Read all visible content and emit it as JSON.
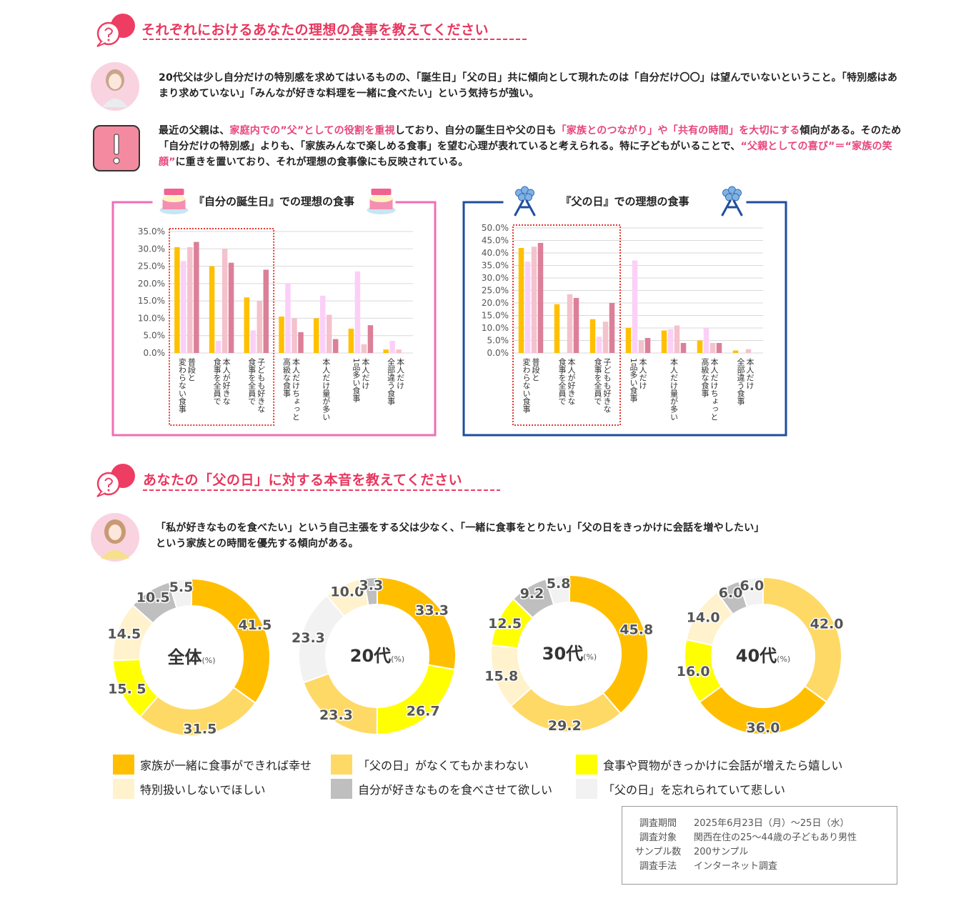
{
  "sections": [
    {
      "title": "それぞれにおけるあなたの理想の食事を教えてください"
    },
    {
      "title": "あなたの「父の日」に対する本音を教えてください"
    }
  ],
  "comment1": "20代父は少し自分だけの特別感を求めてはいるものの、「誕生日」「父の日」共に傾向として現れたのは「自分だけ〇〇」は望んでいないということ。「特別感はあまり求めていない」「みんなが好きな料理を一緒に食べたい」という気持ちが強い。",
  "comment2": [
    {
      "text": "最近の父親は、",
      "highlight": false
    },
    {
      "text": "家庭内での”父”としての役割を重視",
      "highlight": true
    },
    {
      "text": "しており、自分の誕生日や父の日も",
      "highlight": false
    },
    {
      "text": "「家族とのつながり」や「共有の時間」を大切にする",
      "highlight": true
    },
    {
      "text": "傾向がある。そのため「自分だけの特別感」よりも、「家族みんなで楽しめる食事」を望む心理が表れていると考えられる。特に子どもがいることで、",
      "highlight": false
    },
    {
      "text": "“父親としての喜び”＝“家族の笑顔”",
      "highlight": true
    },
    {
      "text": "に重きを置いており、それが理想の食事像にも反映されている。",
      "highlight": false
    }
  ],
  "comment3": [
    "「私が好きなものを食べたい」という自己主張をする父は少なく、「一緒に食事をとりたい」「父の日をきっかけに会話を増やしたい」",
    "という家族との時間を優先する傾向がある。"
  ],
  "chart_data": [
    {
      "type": "bar",
      "title": "『自分の誕生日』での理想の食事",
      "categories": [
        "普段と\n変わらない食事",
        "本人が好きな\n食事を全員で",
        "子どもも好きな\n食事を全員で",
        "本人だけちょっと\n高級な食事",
        "本人だけ量が多い",
        "本人だけ\n1品多い食事",
        "本人だけ\n全部違う食事"
      ],
      "series": [
        {
          "color": "#ffc000",
          "values": [
            30.5,
            25,
            16,
            10.5,
            10,
            7,
            1
          ]
        },
        {
          "color": "#fbd0f7",
          "values": [
            26.5,
            3.5,
            6.5,
            20,
            16.5,
            23.5,
            3.5
          ]
        },
        {
          "color": "#f4c2cc",
          "values": [
            30.5,
            30,
            15,
            10,
            11,
            2.5,
            1
          ]
        },
        {
          "color": "#dc7f98",
          "values": [
            32,
            26,
            24,
            6,
            4,
            8,
            0
          ]
        }
      ],
      "ylim": [
        0,
        35
      ],
      "yticks": [
        {
          "value": 0,
          "label": "0.0%"
        },
        {
          "value": 5,
          "label": "5.0%"
        },
        {
          "value": 10,
          "label": "10.0%"
        },
        {
          "value": 15,
          "label": "15.0%"
        },
        {
          "value": 20,
          "label": "20.0%"
        },
        {
          "value": 25,
          "label": "25.0%"
        },
        {
          "value": 30,
          "label": "30.0%"
        },
        {
          "value": 35,
          "label": "35.0%"
        }
      ],
      "grid": true,
      "frame_color": "#ee6fb5"
    },
    {
      "type": "bar",
      "title": "『父の日』での理想の食事",
      "categories": [
        "普段と\n変わらない食事",
        "本人が好きな\n食事を全員で",
        "子どもも好きな\n食事を全員で",
        "本人だけ\n1品多い食事",
        "本人だけ量が多い",
        "本人だけちょっと\n高級な食事",
        "本人だけ\n全部違う食事"
      ],
      "series": [
        {
          "color": "#ffc000",
          "values": [
            42,
            19.5,
            13.5,
            10,
            9,
            5,
            1
          ]
        },
        {
          "color": "#fbd0f7",
          "values": [
            36.5,
            0,
            6.5,
            37,
            9.5,
            10,
            0
          ]
        },
        {
          "color": "#f4c2cc",
          "values": [
            42.5,
            23.5,
            12.5,
            5,
            11,
            4,
            1.5
          ]
        },
        {
          "color": "#dc7f98",
          "values": [
            44,
            22,
            20,
            6,
            4,
            4,
            0
          ]
        }
      ],
      "ylim": [
        0,
        50
      ],
      "yticks": [
        {
          "value": 0,
          "label": "0.0%"
        },
        {
          "value": 5,
          "label": "5.0%"
        },
        {
          "value": 10,
          "label": "10.0%"
        },
        {
          "value": 15,
          "label": "15.0%"
        },
        {
          "value": 20,
          "label": "20.0%"
        },
        {
          "value": 25,
          "label": "25.0%"
        },
        {
          "value": 30,
          "label": "30.0%"
        },
        {
          "value": 35,
          "label": "35.0%"
        },
        {
          "value": 40,
          "label": "40.0%"
        },
        {
          "value": 45,
          "label": "45.0%"
        },
        {
          "value": 50,
          "label": "50.0%"
        }
      ],
      "grid": true,
      "frame_color": "#1f4e9c"
    },
    {
      "type": "donut",
      "title": "全体",
      "unit": "(%)",
      "values": [
        41.5,
        31.5,
        15.5,
        14.5,
        10.5,
        5.5
      ],
      "value_labels": [
        "41.5",
        "31.5",
        "15. 5",
        "14.5",
        "10.5",
        "5.5"
      ],
      "colors": [
        "#ffbf00",
        "#ffd966",
        "#ffff00",
        "#fff2cc",
        "#bfbfbf",
        "#f2f2f2"
      ]
    },
    {
      "type": "donut",
      "title": "20代",
      "unit": "(%)",
      "values": [
        33.3,
        26.7,
        23.3,
        23.3,
        10.0,
        3.3
      ],
      "value_labels": [
        "33.3",
        "26.7",
        "23.3",
        "23.3",
        "10.0",
        "3.3"
      ],
      "colors": [
        "#ffbf00",
        "#ffff00",
        "#ffd966",
        "#f2f2f2",
        "#fff2cc",
        "#bfbfbf"
      ]
    },
    {
      "type": "donut",
      "title": "30代",
      "unit": "(%)",
      "values": [
        45.8,
        29.2,
        15.8,
        12.5,
        9.2,
        5.8
      ],
      "value_labels": [
        "45.8",
        "29.2",
        "15.8",
        "12.5",
        "9.2",
        "5.8"
      ],
      "colors": [
        "#ffbf00",
        "#ffd966",
        "#fff2cc",
        "#ffff00",
        "#bfbfbf",
        "#f2f2f2"
      ]
    },
    {
      "type": "donut",
      "title": "40代",
      "unit": "(%)",
      "values": [
        42.0,
        36.0,
        16.0,
        14.0,
        6.0,
        6.0
      ],
      "value_labels": [
        "42.0",
        "36.0",
        "16.0",
        "14.0",
        "6.0",
        "6.0"
      ],
      "colors": [
        "#ffd966",
        "#ffbf00",
        "#ffff00",
        "#fff2cc",
        "#bfbfbf",
        "#f2f2f2"
      ]
    }
  ],
  "legend": [
    {
      "name": "家族が一緒に食事ができれば幸せ",
      "color": "#ffbf00"
    },
    {
      "name": "「父の日」がなくてもかまわない",
      "color": "#ffd966"
    },
    {
      "name": "食事や買物がきっかけに会話が増えたら嬉しい",
      "color": "#ffff00"
    },
    {
      "name": "特別扱いしないでほしい",
      "color": "#fff2cc"
    },
    {
      "name": "自分が好きなものを食べさせて欲しい",
      "color": "#bfbfbf"
    },
    {
      "name": "「父の日」を忘れられていて悲しい",
      "color": "#f2f2f2"
    }
  ],
  "survey": [
    [
      "調査期間",
      "2025年6月23日（月）～25日（水）"
    ],
    [
      "調査対象",
      "関西在住の25～44歳の子どもあり男性"
    ],
    [
      "サンプル数",
      "200サンプル"
    ],
    [
      "調査手法",
      "インターネット調査"
    ]
  ]
}
